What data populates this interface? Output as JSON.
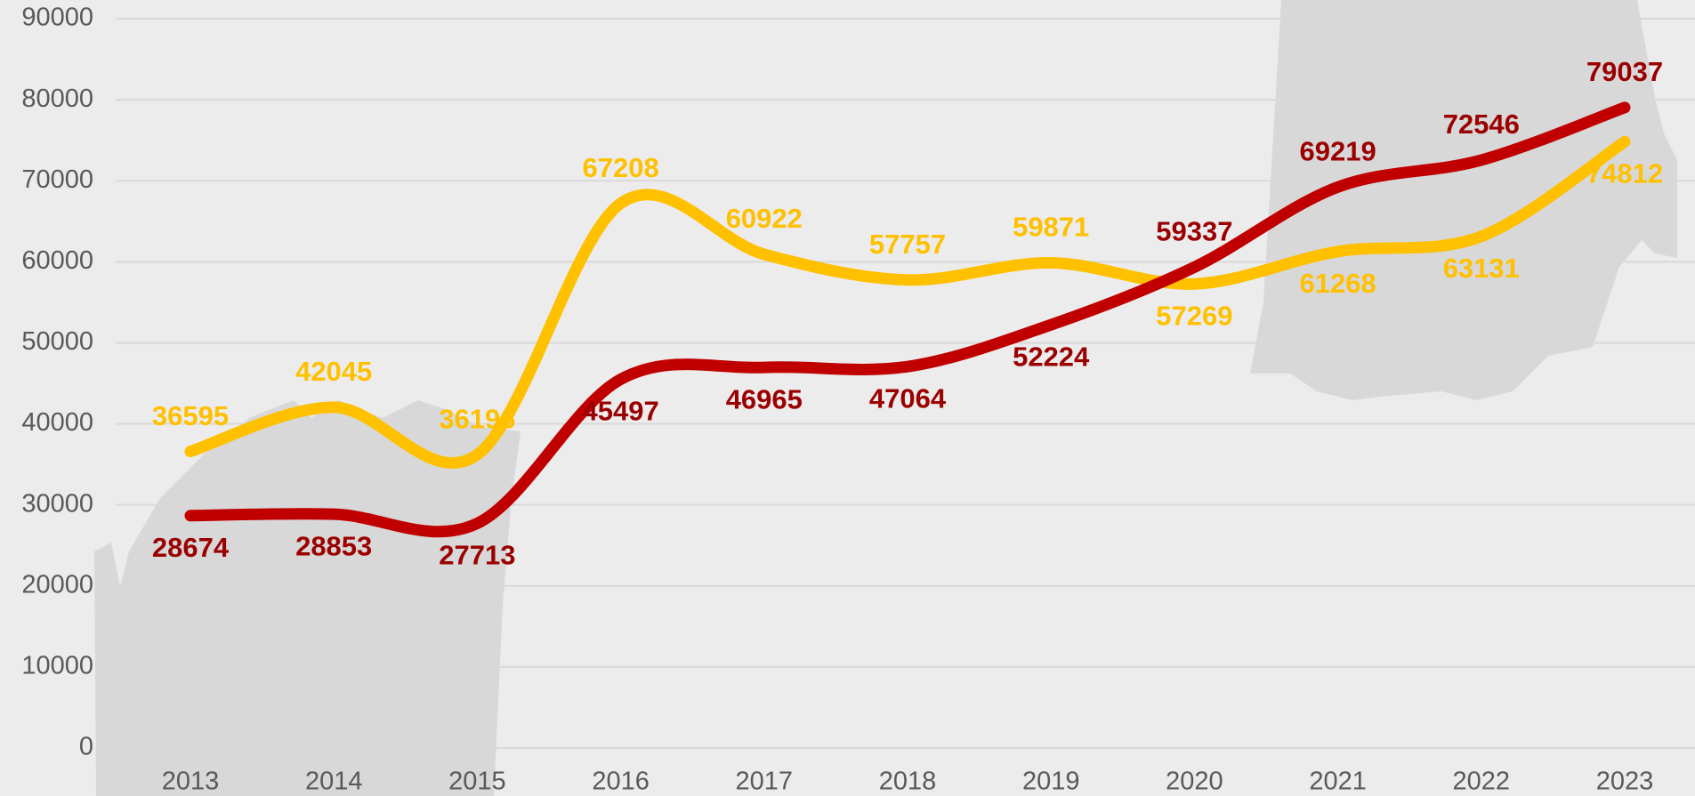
{
  "chart_data": {
    "type": "line",
    "categories": [
      "2013",
      "2014",
      "2015",
      "2016",
      "2017",
      "2018",
      "2019",
      "2020",
      "2021",
      "2022",
      "2023"
    ],
    "series": [
      {
        "color": "#ffc000",
        "label_color": "#ffc000",
        "values": [
          36595,
          42045,
          36196,
          67208,
          60922,
          57757,
          59871,
          57269,
          61268,
          63131,
          74812
        ]
      },
      {
        "color": "#c00000",
        "label_color": "#9b0000",
        "values": [
          28674,
          28853,
          27713,
          45497,
          46965,
          47064,
          52224,
          59337,
          69219,
          72546,
          79037
        ]
      }
    ],
    "ylim": [
      0,
      90000
    ],
    "yticks": [
      0,
      10000,
      20000,
      30000,
      40000,
      50000,
      60000,
      70000,
      80000,
      90000
    ],
    "grid": true,
    "smooth": true
  }
}
